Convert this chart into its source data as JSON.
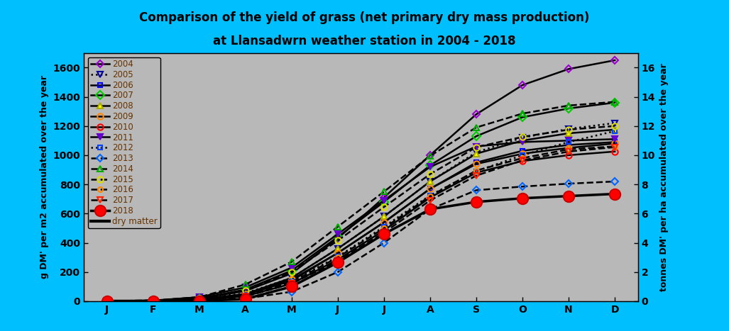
{
  "title_line1": "Comparison of the yield of grass (net primary dry mass production)",
  "title_line2": "at Llansadwrn weather station in 2004 - 2018",
  "title_color": "#000000",
  "background_color": "#00bfff",
  "plot_bg_color": "#b8b8b8",
  "ylabel_left": "g DM' per m2 accumulated over the year",
  "ylabel_right": "tonnes DM' per ha accumulated over the year",
  "ylim_left": [
    0,
    1700
  ],
  "ylim_right": [
    0,
    17
  ],
  "yticks_left": [
    0,
    200,
    400,
    600,
    800,
    1000,
    1200,
    1400,
    1600
  ],
  "yticks_right": [
    0,
    2,
    4,
    6,
    8,
    10,
    12,
    14,
    16
  ],
  "months": [
    "J",
    "F",
    "M",
    "A",
    "M",
    "J",
    "J",
    "A",
    "S",
    "O",
    "N",
    "D"
  ],
  "month_positions": [
    0,
    1,
    2,
    3,
    4,
    5,
    6,
    7,
    8,
    9,
    10,
    11
  ],
  "series": [
    {
      "year": "2004",
      "marker": "D",
      "markersize": 5,
      "linestyle": "-",
      "linewidth": 1.8,
      "markerfacecolor": "none",
      "markeredgecolor": "#9900cc",
      "values": [
        2,
        4,
        20,
        70,
        190,
        430,
        710,
        1000,
        1280,
        1480,
        1590,
        1650
      ]
    },
    {
      "year": "2005",
      "marker": "v",
      "markersize": 6,
      "linestyle": ":",
      "linewidth": 1.8,
      "markerfacecolor": "none",
      "markeredgecolor": "#000099",
      "values": [
        2,
        4,
        18,
        55,
        160,
        360,
        580,
        820,
        1020,
        1120,
        1180,
        1220
      ]
    },
    {
      "year": "2006",
      "marker": "s",
      "markersize": 5,
      "linestyle": "-",
      "linewidth": 1.8,
      "markerfacecolor": "none",
      "markeredgecolor": "#0000ff",
      "values": [
        2,
        4,
        12,
        45,
        140,
        330,
        540,
        770,
        950,
        1030,
        1070,
        1090
      ]
    },
    {
      "year": "2007",
      "marker": "D",
      "markersize": 6,
      "linestyle": "-",
      "linewidth": 1.8,
      "markerfacecolor": "none",
      "markeredgecolor": "#00cc00",
      "values": [
        2,
        4,
        18,
        80,
        210,
        440,
        680,
        930,
        1130,
        1260,
        1320,
        1360
      ]
    },
    {
      "year": "2008",
      "marker": "^",
      "markersize": 6,
      "linestyle": "-",
      "linewidth": 1.8,
      "markerfacecolor": "#ffff00",
      "markeredgecolor": "#aaaa00",
      "values": [
        2,
        3,
        12,
        50,
        160,
        360,
        580,
        820,
        1010,
        1100,
        1150,
        1175
      ]
    },
    {
      "year": "2009",
      "marker": "o",
      "markersize": 6,
      "linestyle": "-",
      "linewidth": 1.8,
      "markerfacecolor": "none",
      "markeredgecolor": "#ff8800",
      "values": [
        2,
        3,
        12,
        48,
        148,
        330,
        540,
        770,
        940,
        1010,
        1050,
        1080
      ]
    },
    {
      "year": "2010",
      "marker": "o",
      "markersize": 6,
      "linestyle": "-",
      "linewidth": 1.8,
      "markerfacecolor": "none",
      "markeredgecolor": "#ff0000",
      "values": [
        2,
        2,
        8,
        35,
        120,
        285,
        485,
        710,
        880,
        960,
        1000,
        1025
      ]
    },
    {
      "year": "2011",
      "marker": "v",
      "markersize": 6,
      "linestyle": "-",
      "linewidth": 1.8,
      "markerfacecolor": "#6600cc",
      "markeredgecolor": "#6600cc",
      "values": [
        2,
        5,
        28,
        95,
        230,
        460,
        690,
        920,
        1060,
        1090,
        1100,
        1110
      ]
    },
    {
      "year": "2012",
      "marker": "s",
      "markersize": 5,
      "linestyle": ":",
      "linewidth": 1.8,
      "markerfacecolor": "none",
      "markeredgecolor": "#0044ff",
      "values": [
        2,
        3,
        12,
        42,
        138,
        305,
        510,
        725,
        890,
        1000,
        1090,
        1165
      ]
    },
    {
      "year": "2013",
      "marker": "D",
      "markersize": 5,
      "linestyle": "--",
      "linewidth": 1.8,
      "markerfacecolor": "none",
      "markeredgecolor": "#0066ff",
      "values": [
        2,
        2,
        6,
        18,
        65,
        200,
        400,
        630,
        760,
        785,
        805,
        820
      ]
    },
    {
      "year": "2014",
      "marker": "^",
      "markersize": 6,
      "linestyle": "--",
      "linewidth": 1.8,
      "markerfacecolor": "none",
      "markeredgecolor": "#00aa00",
      "values": [
        2,
        5,
        28,
        115,
        270,
        510,
        750,
        995,
        1190,
        1285,
        1340,
        1365
      ]
    },
    {
      "year": "2015",
      "marker": "o",
      "markersize": 6,
      "linestyle": "--",
      "linewidth": 1.8,
      "markerfacecolor": "none",
      "markeredgecolor": "#dddd00",
      "values": [
        2,
        5,
        18,
        72,
        200,
        415,
        645,
        870,
        1055,
        1125,
        1175,
        1200
      ]
    },
    {
      "year": "2016",
      "marker": "o",
      "markersize": 5,
      "linestyle": "--",
      "linewidth": 1.8,
      "markerfacecolor": "none",
      "markeredgecolor": "#ff8800",
      "values": [
        2,
        3,
        10,
        38,
        130,
        300,
        500,
        720,
        895,
        980,
        1040,
        1060
      ]
    },
    {
      "year": "2017",
      "marker": "v",
      "markersize": 6,
      "linestyle": "--",
      "linewidth": 1.8,
      "markerfacecolor": "none",
      "markeredgecolor": "#ff2200",
      "values": [
        2,
        2,
        8,
        32,
        120,
        275,
        470,
        690,
        860,
        965,
        1025,
        1055
      ]
    },
    {
      "year": "2018",
      "marker": "o",
      "markersize": 11,
      "linestyle": "-",
      "linewidth": 2.5,
      "markerfacecolor": "#ff0000",
      "markeredgecolor": "#cc0000",
      "values": [
        2,
        2,
        2,
        15,
        100,
        265,
        460,
        630,
        680,
        705,
        720,
        735
      ]
    }
  ],
  "legend_text_color": "#663300",
  "legend_fontsize": 8.5,
  "axis_label_fontsize": 9,
  "tick_label_fontsize": 10,
  "title_fontsize": 12
}
